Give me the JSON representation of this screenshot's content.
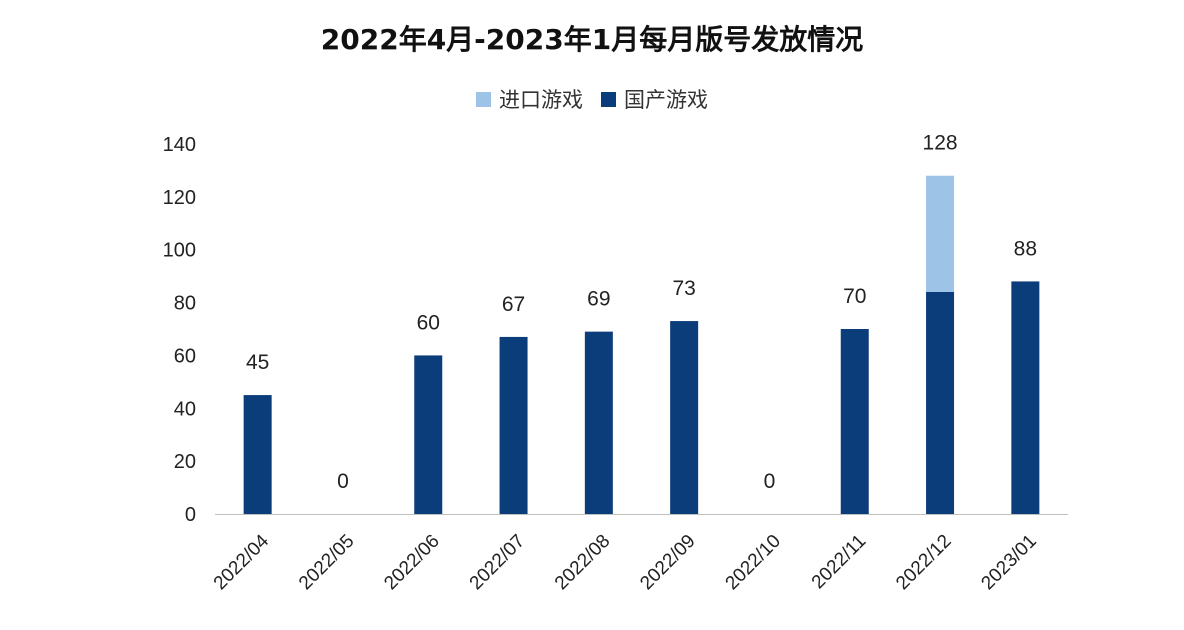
{
  "chart_data": {
    "type": "bar",
    "stacked": true,
    "title": "2022年4月-2023年1月每月版号发放情况",
    "categories": [
      "2022/04",
      "2022/05",
      "2022/06",
      "2022/07",
      "2022/08",
      "2022/09",
      "2022/10",
      "2022/11",
      "2022/12",
      "2023/01"
    ],
    "series": [
      {
        "name": "进口游戏",
        "color": "#9dc3e6",
        "values": [
          0,
          0,
          0,
          0,
          0,
          0,
          0,
          0,
          44,
          0
        ]
      },
      {
        "name": "国产游戏",
        "color": "#0b3d7a",
        "values": [
          45,
          0,
          60,
          67,
          69,
          73,
          0,
          70,
          84,
          88
        ]
      }
    ],
    "totals": [
      "45",
      "0",
      "60",
      "67",
      "69",
      "73",
      "0",
      "70",
      "128",
      "88"
    ],
    "ylim": [
      0,
      140
    ],
    "yticks": [
      "0",
      "20",
      "40",
      "60",
      "80",
      "100",
      "120",
      "140"
    ],
    "legend_position": "top-center",
    "grid": false
  }
}
